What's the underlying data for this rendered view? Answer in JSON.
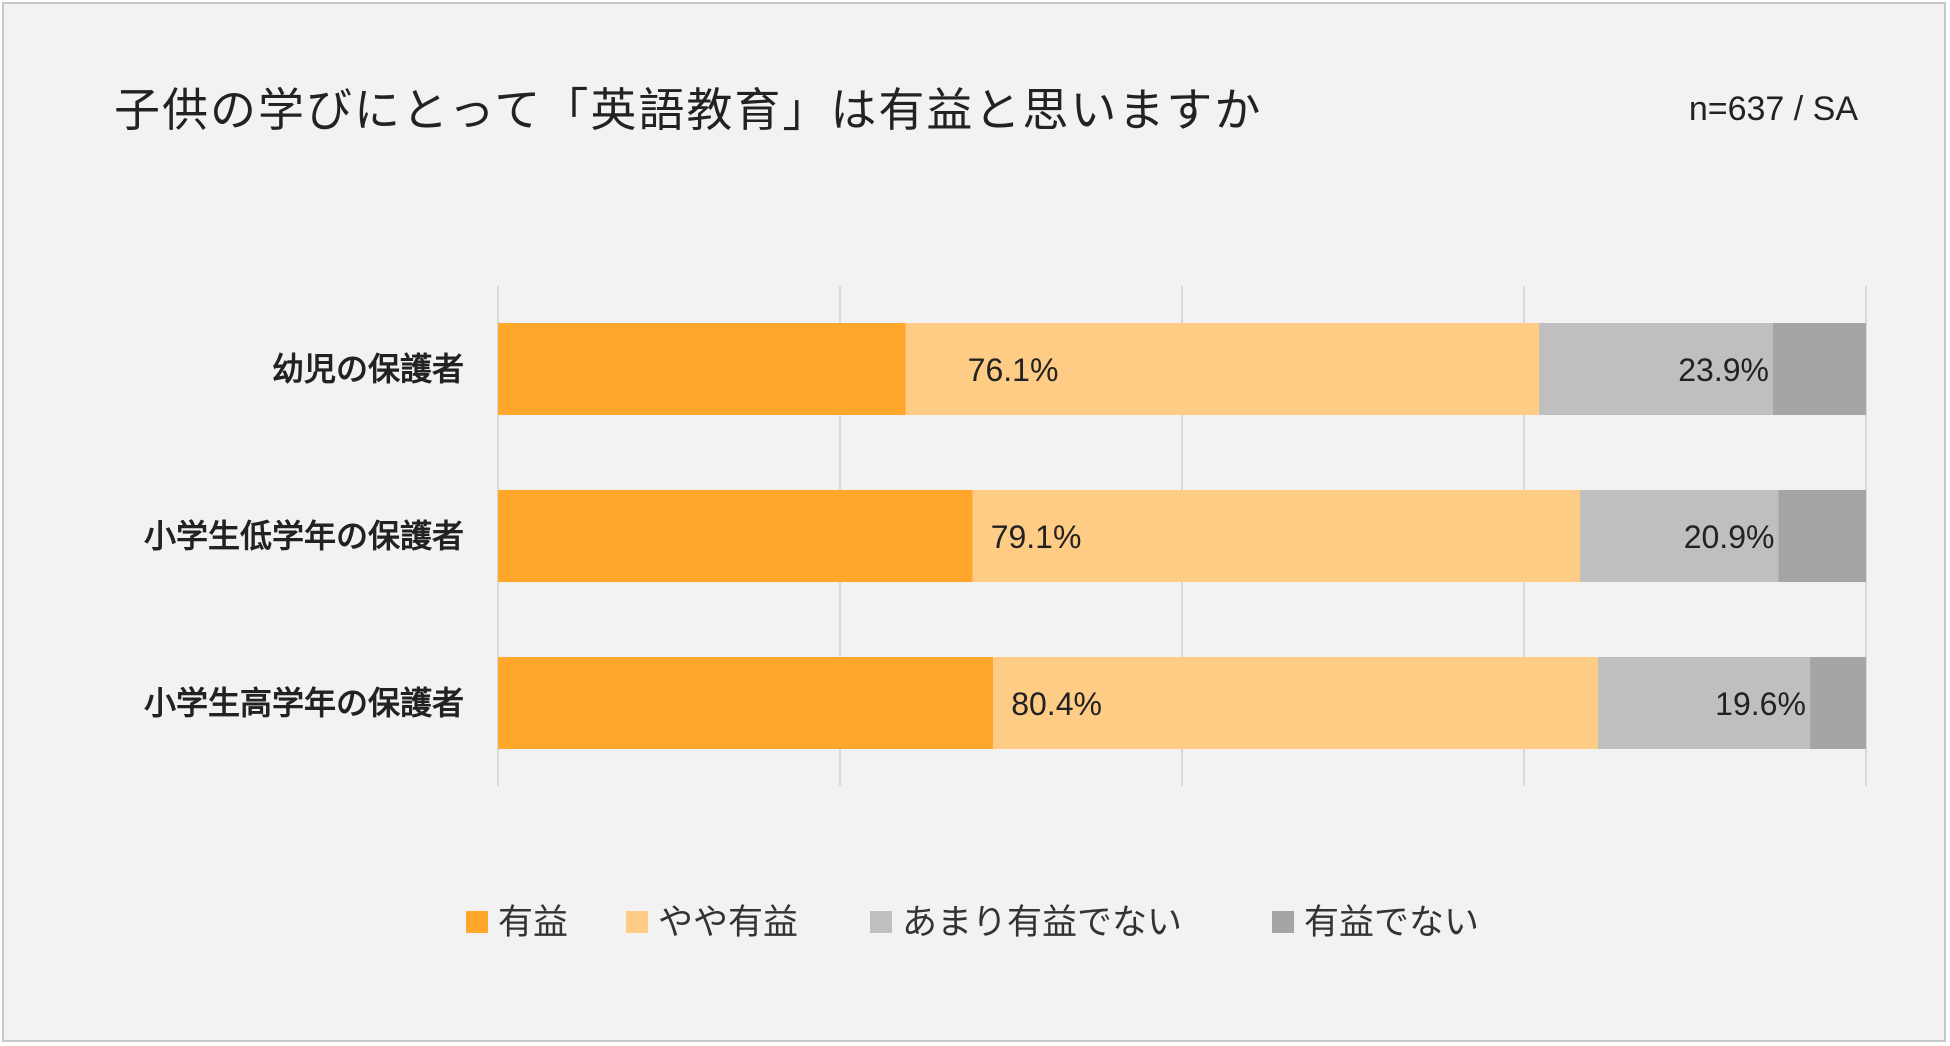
{
  "title": "子供の学びにとって「英語教育」は有益と思いますか",
  "sample_note": "n=637 / SA",
  "colors": {
    "background": "#f2f2f2",
    "border": "#c8c8c8",
    "gridline": "#d9d9d9",
    "useful": "#ffa62b",
    "somewhat_useful": "#ffcc85",
    "not_very_useful": "#bfbfbf",
    "not_useful": "#a5a5a5"
  },
  "chart_data": {
    "type": "bar",
    "orientation": "horizontal",
    "stacked": true,
    "categories": [
      "幼児の保護者",
      "小学生低学年の保護者",
      "小学生高学年の保護者"
    ],
    "xlim": [
      0,
      100
    ],
    "grid": true,
    "legend_position": "bottom",
    "series": [
      {
        "name": "有益",
        "values": [
          29.8,
          34.7,
          36.2
        ],
        "color": "#ffa62b"
      },
      {
        "name": "やや有益",
        "values": [
          46.3,
          44.4,
          44.2
        ],
        "color": "#ffcc85"
      },
      {
        "name": "あまり有益でない",
        "values": [
          17.1,
          14.5,
          15.5
        ],
        "color": "#bfbfbf"
      },
      {
        "name": "有益でない",
        "values": [
          6.8,
          6.4,
          4.1
        ],
        "color": "#a5a5a5"
      }
    ],
    "data_labels": [
      {
        "positive_label": "76.1%",
        "negative_label": "23.9%"
      },
      {
        "positive_label": "79.1%",
        "negative_label": "20.9%"
      },
      {
        "positive_label": "80.4%",
        "negative_label": "19.6%"
      }
    ]
  }
}
